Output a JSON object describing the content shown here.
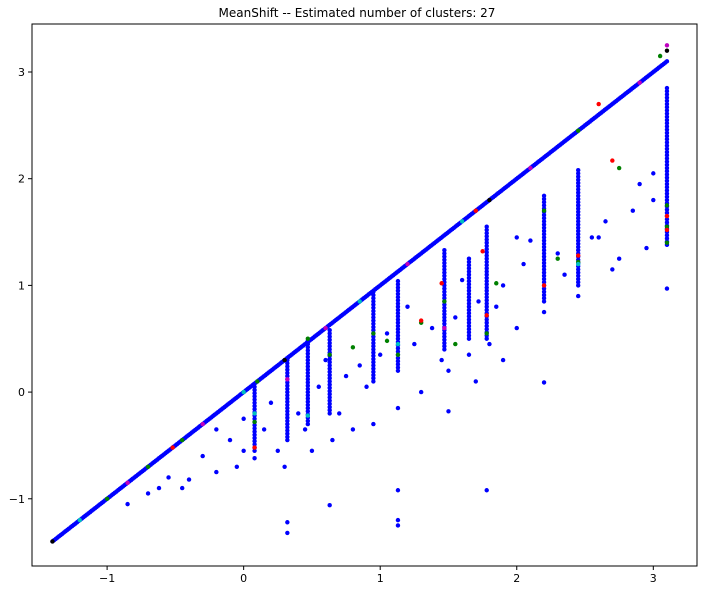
{
  "chart_data": {
    "type": "scatter",
    "title": "MeanShift -- Estimated number of clusters: 27",
    "xlabel": "",
    "ylabel": "",
    "xlim": [
      -1.55,
      3.32
    ],
    "ylim": [
      -1.63,
      3.45
    ],
    "x_ticks": [
      -1,
      0,
      1,
      2,
      3
    ],
    "y_ticks": [
      -1,
      0,
      1,
      2,
      3
    ],
    "x_tick_labels": [
      "−1",
      "0",
      "1",
      "2",
      "3"
    ],
    "y_tick_labels": [
      "−1",
      "0",
      "1",
      "2",
      "3"
    ],
    "grid": false,
    "legend": "none",
    "colors": {
      "blue": "#0000ff",
      "green": "#008000",
      "red": "#ff0000",
      "magenta": "#bf00bf",
      "cyan": "#00bfbf",
      "black": "#000000"
    },
    "diagonal": {
      "from": -1.4,
      "to": 3.1,
      "color": "blue"
    },
    "vertical_columns": [
      {
        "x": 0.08,
        "y_min": -0.55,
        "y_max": 0.05
      },
      {
        "x": 0.32,
        "y_min": -0.45,
        "y_max": 0.3
      },
      {
        "x": 0.47,
        "y_min": -0.3,
        "y_max": 0.5
      },
      {
        "x": 0.63,
        "y_min": -0.2,
        "y_max": 0.6
      },
      {
        "x": 0.95,
        "y_min": 0.1,
        "y_max": 0.95
      },
      {
        "x": 1.13,
        "y_min": 0.2,
        "y_max": 1.05
      },
      {
        "x": 1.47,
        "y_min": 0.4,
        "y_max": 1.35
      },
      {
        "x": 1.65,
        "y_min": 0.5,
        "y_max": 1.25
      },
      {
        "x": 1.78,
        "y_min": 0.5,
        "y_max": 1.55
      },
      {
        "x": 2.2,
        "y_min": 0.85,
        "y_max": 1.85
      },
      {
        "x": 2.45,
        "y_min": 1.0,
        "y_max": 2.1
      },
      {
        "x": 3.1,
        "y_min": 1.38,
        "y_max": 2.85
      }
    ],
    "series": [
      {
        "color": "blue",
        "points": [
          [
            -0.85,
            -1.05
          ],
          [
            -0.62,
            -0.9
          ],
          [
            -0.4,
            -0.82
          ],
          [
            -0.2,
            -0.75
          ],
          [
            -0.05,
            -0.7
          ],
          [
            0.08,
            -0.62
          ],
          [
            0.3,
            -0.7
          ],
          [
            0.5,
            -0.55
          ],
          [
            0.65,
            -0.45
          ],
          [
            0.8,
            -0.35
          ],
          [
            0.95,
            -0.3
          ],
          [
            1.13,
            -0.15
          ],
          [
            1.3,
            0.0
          ],
          [
            1.5,
            0.2
          ],
          [
            1.65,
            0.35
          ],
          [
            1.8,
            0.45
          ],
          [
            2.0,
            0.6
          ],
          [
            2.2,
            0.75
          ],
          [
            2.45,
            0.9
          ],
          [
            2.7,
            1.15
          ],
          [
            2.95,
            1.35
          ],
          [
            -0.55,
            -0.8
          ],
          [
            -0.3,
            -0.6
          ],
          [
            -0.1,
            -0.45
          ],
          [
            0.15,
            -0.35
          ],
          [
            0.4,
            -0.2
          ],
          [
            0.2,
            -0.1
          ],
          [
            0.55,
            0.05
          ],
          [
            0.75,
            0.15
          ],
          [
            0.85,
            0.25
          ],
          [
            1.0,
            0.35
          ],
          [
            1.25,
            0.45
          ],
          [
            1.38,
            0.6
          ],
          [
            1.55,
            0.7
          ],
          [
            1.72,
            0.85
          ],
          [
            1.9,
            1.0
          ],
          [
            2.05,
            1.2
          ],
          [
            2.3,
            1.3
          ],
          [
            2.55,
            1.45
          ],
          [
            2.65,
            1.6
          ],
          [
            2.85,
            1.7
          ],
          [
            3.0,
            1.8
          ],
          [
            0.32,
            -1.22
          ],
          [
            0.32,
            -1.32
          ],
          [
            1.13,
            -0.92
          ],
          [
            1.13,
            -1.2
          ],
          [
            1.13,
            -1.25
          ],
          [
            0.63,
            -1.06
          ],
          [
            1.78,
            -0.92
          ],
          [
            1.5,
            -0.18
          ],
          [
            2.2,
            0.09
          ],
          [
            3.1,
            0.97
          ],
          [
            2.45,
            1.75
          ],
          [
            2.6,
            1.45
          ],
          [
            2.75,
            1.25
          ],
          [
            2.9,
            1.95
          ],
          [
            3.0,
            2.05
          ],
          [
            -0.2,
            -0.35
          ],
          [
            0.0,
            -0.25
          ],
          [
            0.6,
            0.3
          ],
          [
            1.2,
            0.8
          ],
          [
            1.6,
            1.05
          ],
          [
            2.0,
            1.45
          ],
          [
            2.1,
            1.42
          ],
          [
            0.7,
            -0.2
          ],
          [
            0.9,
            0.05
          ],
          [
            1.05,
            0.55
          ],
          [
            1.45,
            0.3
          ],
          [
            1.85,
            0.8
          ],
          [
            2.35,
            1.1
          ],
          [
            -0.7,
            -0.95
          ],
          [
            -0.45,
            -0.9
          ],
          [
            0.0,
            -0.55
          ],
          [
            0.25,
            -0.55
          ],
          [
            0.45,
            -0.35
          ],
          [
            1.7,
            0.1
          ],
          [
            1.9,
            0.3
          ]
        ]
      },
      {
        "color": "green",
        "points": [
          [
            -1.0,
            -1.0
          ],
          [
            -0.7,
            -0.7
          ],
          [
            0.1,
            0.1
          ],
          [
            0.47,
            0.5
          ],
          [
            0.8,
            0.42
          ],
          [
            1.05,
            0.48
          ],
          [
            1.3,
            0.65
          ],
          [
            1.55,
            0.45
          ],
          [
            1.78,
            0.55
          ],
          [
            1.85,
            1.02
          ],
          [
            2.2,
            1.7
          ],
          [
            2.3,
            1.25
          ],
          [
            2.45,
            1.22
          ],
          [
            2.75,
            2.1
          ],
          [
            3.1,
            1.4
          ],
          [
            3.1,
            1.55
          ],
          [
            3.1,
            1.75
          ],
          [
            3.05,
            3.15
          ],
          [
            0.95,
            0.55
          ],
          [
            0.63,
            0.35
          ],
          [
            0.08,
            -0.28
          ],
          [
            1.13,
            0.35
          ],
          [
            1.47,
            0.85
          ],
          [
            -0.45,
            -0.45
          ],
          [
            2.45,
            2.45
          ]
        ]
      },
      {
        "color": "red",
        "points": [
          [
            2.7,
            2.17
          ],
          [
            2.45,
            1.28
          ],
          [
            2.2,
            1.0
          ],
          [
            1.78,
            0.72
          ],
          [
            1.45,
            1.02
          ],
          [
            1.3,
            0.67
          ],
          [
            3.1,
            1.52
          ],
          [
            3.1,
            1.65
          ],
          [
            2.6,
            2.7
          ],
          [
            1.75,
            1.32
          ],
          [
            0.08,
            -0.52
          ],
          [
            -0.52,
            -0.52
          ],
          [
            1.7,
            1.7
          ]
        ]
      },
      {
        "color": "magenta",
        "points": [
          [
            -0.85,
            -0.85
          ],
          [
            -0.3,
            -0.3
          ],
          [
            0.6,
            0.6
          ],
          [
            1.2,
            1.2
          ],
          [
            2.1,
            2.1
          ],
          [
            2.9,
            2.9
          ],
          [
            3.1,
            3.25
          ],
          [
            1.47,
            0.6
          ],
          [
            0.32,
            0.12
          ]
        ]
      },
      {
        "color": "cyan",
        "points": [
          [
            0.85,
            0.85
          ],
          [
            1.6,
            1.6
          ],
          [
            0.0,
            0.0
          ],
          [
            -1.2,
            -1.2
          ],
          [
            0.08,
            -0.2
          ],
          [
            2.45,
            1.2
          ],
          [
            0.47,
            -0.22
          ],
          [
            1.13,
            0.45
          ]
        ]
      },
      {
        "color": "black",
        "points": [
          [
            -1.4,
            -1.4
          ],
          [
            3.1,
            3.2
          ],
          [
            1.8,
            1.8
          ],
          [
            0.3,
            0.3
          ]
        ]
      }
    ]
  }
}
